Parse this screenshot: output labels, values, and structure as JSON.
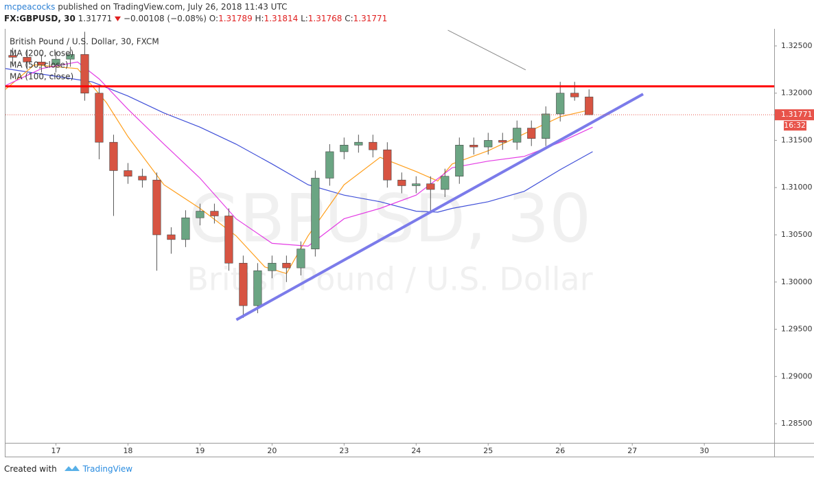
{
  "header": {
    "author": "mcpeacocks",
    "published": "published on TradingView.com, July 26, 2018 11:43 UTC",
    "symbol": "FX:GBPUSD, 30",
    "price": "1.31771",
    "change": "−0.00108 (−0.08%)",
    "ohlc": [
      {
        "label": "O:",
        "value": "1.31789"
      },
      {
        "label": "H:",
        "value": "1.31814"
      },
      {
        "label": "L:",
        "value": "1.31768"
      },
      {
        "label": "C:",
        "value": "1.31771"
      }
    ]
  },
  "footer": {
    "created_with": "Created with",
    "brand": "TradingView"
  },
  "chart_data": {
    "type": "candlestick",
    "title": "British Pound / U.S. Dollar, 30, FXCM",
    "watermark": [
      "GBPUSD, 30",
      "British Pound / U.S. Dollar"
    ],
    "up_color": "#6ba583",
    "down_color": "#d75442",
    "grid": false,
    "xlim": [
      -0.7,
      9.97
    ],
    "ylim": [
      1.28297,
      1.32681
    ],
    "xticks": [
      {
        "value": 0,
        "label": "17"
      },
      {
        "value": 1,
        "label": "18"
      },
      {
        "value": 2,
        "label": "19"
      },
      {
        "value": 3,
        "label": "20"
      },
      {
        "value": 4,
        "label": "23"
      },
      {
        "value": 5,
        "label": "24"
      },
      {
        "value": 6,
        "label": "25"
      },
      {
        "value": 7,
        "label": "26"
      },
      {
        "value": 8,
        "label": "27"
      },
      {
        "value": 9,
        "label": "30"
      }
    ],
    "yticks": [
      {
        "value": 1.285,
        "label": "1.28500"
      },
      {
        "value": 1.29,
        "label": "1.29000"
      },
      {
        "value": 1.295,
        "label": "1.29500"
      },
      {
        "value": 1.3,
        "label": "1.30000"
      },
      {
        "value": 1.305,
        "label": "1.30500"
      },
      {
        "value": 1.31,
        "label": "1.31000"
      },
      {
        "value": 1.315,
        "label": "1.31500"
      },
      {
        "value": 1.32,
        "label": "1.32000"
      },
      {
        "value": 1.325,
        "label": "1.32500"
      }
    ],
    "x": [
      -0.6,
      -0.4,
      -0.2,
      0,
      0.2,
      0.4,
      0.6,
      0.8,
      1,
      1.2,
      1.4,
      1.6,
      1.8,
      2,
      2.2,
      2.4,
      2.6,
      2.8,
      3,
      3.2,
      3.4,
      3.6,
      3.8,
      4,
      4.2,
      4.4,
      4.6,
      4.8,
      5,
      5.2,
      5.4,
      5.6,
      5.8,
      6,
      6.2,
      6.4,
      6.6,
      6.8,
      7,
      7.2,
      7.4
    ],
    "open": [
      1.324,
      1.3238,
      1.3233,
      1.323,
      1.3236,
      1.3241,
      1.32,
      1.3148,
      1.3118,
      1.3112,
      1.3108,
      1.305,
      1.3045,
      1.3068,
      1.3075,
      1.307,
      1.302,
      1.2975,
      1.3012,
      1.302,
      1.3015,
      1.3035,
      1.311,
      1.3138,
      1.3145,
      1.3148,
      1.314,
      1.3108,
      1.3102,
      1.3104,
      1.3098,
      1.3112,
      1.3145,
      1.3143,
      1.315,
      1.3148,
      1.3163,
      1.3152,
      1.3178,
      1.32,
      1.3196
    ],
    "high": [
      1.3248,
      1.3246,
      1.3241,
      1.3244,
      1.3249,
      1.3265,
      1.3208,
      1.3156,
      1.3126,
      1.312,
      1.3116,
      1.3058,
      1.3076,
      1.3083,
      1.3083,
      1.3078,
      1.3028,
      1.302,
      1.3028,
      1.3028,
      1.3043,
      1.3118,
      1.3146,
      1.3153,
      1.3156,
      1.3156,
      1.3148,
      1.3116,
      1.3112,
      1.3112,
      1.312,
      1.3153,
      1.3153,
      1.3158,
      1.3158,
      1.3171,
      1.3171,
      1.3186,
      1.3212,
      1.3212,
      1.3204
    ],
    "low": [
      1.323,
      1.3225,
      1.3222,
      1.3222,
      1.3228,
      1.3192,
      1.313,
      1.307,
      1.3104,
      1.31,
      1.3012,
      1.303,
      1.3037,
      1.306,
      1.3062,
      1.3012,
      1.2962,
      1.2967,
      1.3004,
      1.3,
      1.3007,
      1.3027,
      1.3102,
      1.313,
      1.3137,
      1.3132,
      1.31,
      1.3094,
      1.3094,
      1.3075,
      1.309,
      1.3104,
      1.3135,
      1.3135,
      1.314,
      1.314,
      1.3144,
      1.3144,
      1.317,
      1.3192,
      1.31768
    ],
    "close": [
      1.3238,
      1.3233,
      1.323,
      1.3236,
      1.3241,
      1.32,
      1.3148,
      1.3118,
      1.3112,
      1.3108,
      1.305,
      1.3045,
      1.3068,
      1.3075,
      1.307,
      1.302,
      1.2975,
      1.3012,
      1.302,
      1.3015,
      1.3035,
      1.311,
      1.3138,
      1.3145,
      1.3148,
      1.314,
      1.3108,
      1.3102,
      1.3104,
      1.3098,
      1.3112,
      1.3145,
      1.3143,
      1.315,
      1.3148,
      1.3163,
      1.3152,
      1.3178,
      1.32,
      1.3196,
      1.31771
    ],
    "last_price": 1.31771,
    "countdown": "16:32",
    "last_price_color": "#e8534a",
    "moving_averages": [
      {
        "name": "MA (200, close)",
        "color": "#3f4fd8",
        "x": [
          -0.7,
          0.5,
          1,
          1.5,
          2,
          2.5,
          3,
          3.5,
          4,
          4.5,
          5,
          5.3,
          5.5,
          6,
          6.5,
          7,
          7.45
        ],
        "values": [
          1.3226,
          1.3212,
          1.3197,
          1.3179,
          1.3164,
          1.3146,
          1.3125,
          1.3103,
          1.3092,
          1.3085,
          1.3075,
          1.3074,
          1.3078,
          1.3085,
          1.3096,
          1.3119,
          1.3138
        ]
      },
      {
        "name": "MA (50, close)",
        "color": "#ff9f1c",
        "x": [
          -0.7,
          -0.3,
          0.3,
          0.7,
          1,
          1.5,
          2,
          2.5,
          2.9,
          3.2,
          3.5,
          4,
          4.5,
          5,
          5.3,
          5.5,
          6,
          6.5,
          7,
          7.45
        ],
        "values": [
          1.3204,
          1.323,
          1.3226,
          1.319,
          1.3154,
          1.3103,
          1.3078,
          1.3049,
          1.3016,
          1.3009,
          1.3049,
          1.3103,
          1.3132,
          1.3117,
          1.3107,
          1.3125,
          1.3139,
          1.3157,
          1.3175,
          1.3183
        ]
      },
      {
        "name": "MA (100, close)",
        "color": "#e43ce4",
        "x": [
          -0.7,
          -0.2,
          0.3,
          0.6,
          1,
          1.5,
          2,
          2.5,
          3,
          3.5,
          4,
          4.5,
          5,
          5.5,
          6,
          6.5,
          7,
          7.45
        ],
        "values": [
          1.3208,
          1.3226,
          1.3233,
          1.3215,
          1.3183,
          1.3146,
          1.311,
          1.3067,
          1.3041,
          1.3038,
          1.3067,
          1.3078,
          1.3092,
          1.3121,
          1.3128,
          1.3133,
          1.3148,
          1.3164
        ]
      }
    ],
    "levels": [
      {
        "value": 1.32072,
        "color": "#ff0000"
      }
    ],
    "trendlines": [
      {
        "x": [
          2.505,
          8.15
        ],
        "values": [
          1.296,
          1.3199
        ],
        "color": "#7b7bea",
        "width": 4
      },
      {
        "x": [
          5.44,
          6.52
        ],
        "values": [
          1.32667,
          1.32246
        ],
        "color": "#888888",
        "width": 1
      }
    ]
  }
}
